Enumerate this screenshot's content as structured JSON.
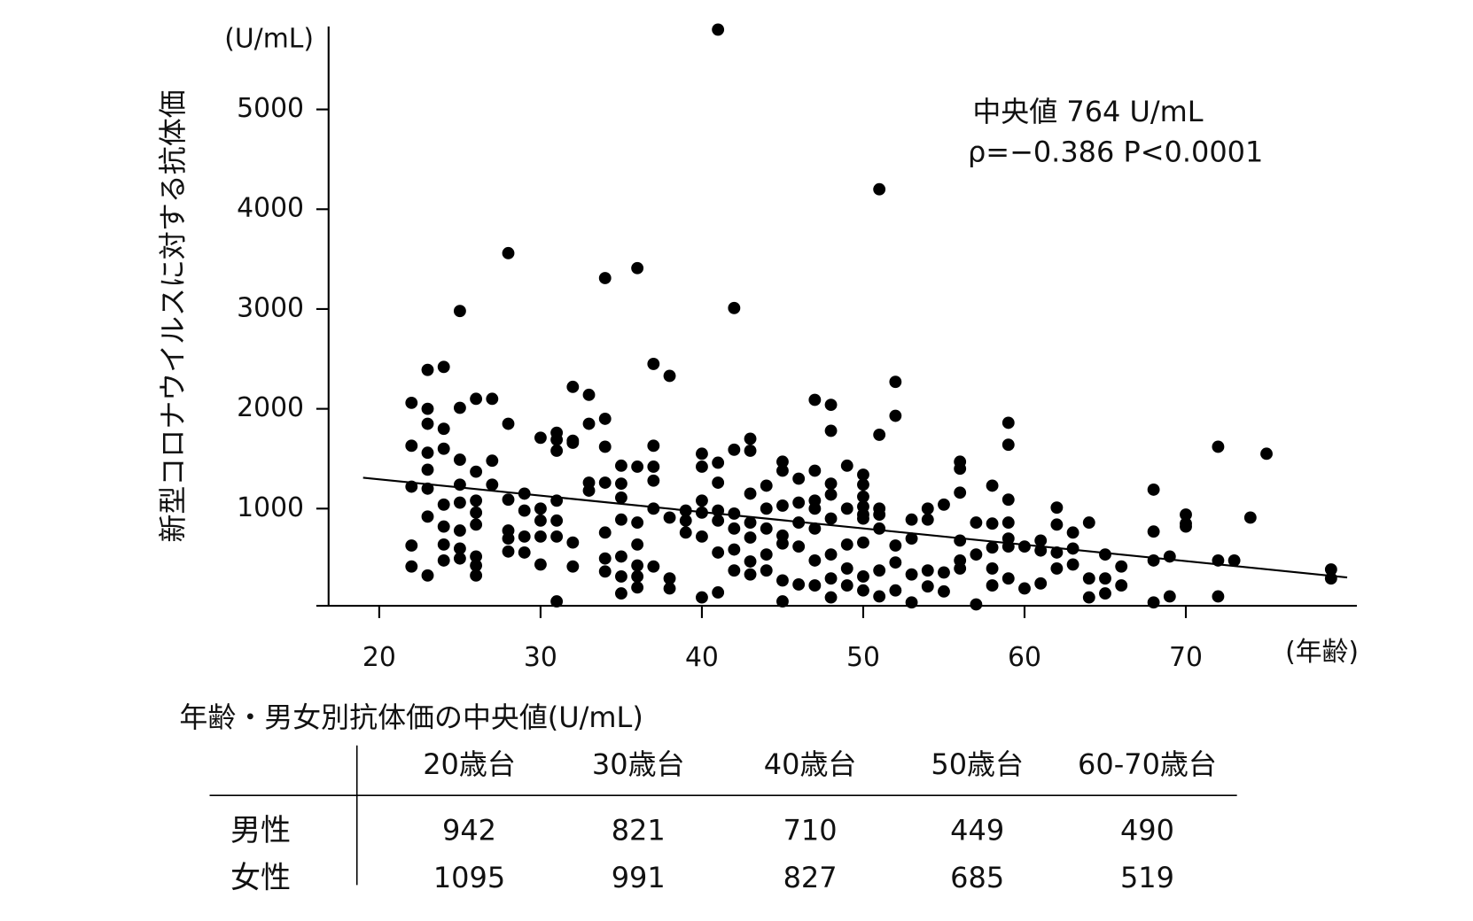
{
  "chart_data": {
    "type": "scatter",
    "ylabel": "新型コロナウイルスに対する抗体価",
    "yunit": "(U/mL)",
    "xunit": "(年齢)",
    "annotations": [
      "中央値 764 U/mL",
      "ρ=−0.386 P<0.0001"
    ],
    "color": "#000000",
    "xlim": [
      16.1,
      80.6
    ],
    "xticks": [
      20,
      30,
      40,
      50,
      60,
      70
    ],
    "ylim": [
      0,
      5850
    ],
    "yticks": [
      1000,
      2000,
      3000,
      4000,
      5000
    ],
    "trend": {
      "x": [
        19,
        80
      ],
      "values": [
        1310,
        310
      ]
    },
    "x": [
      79,
      79,
      75,
      74,
      73,
      72,
      72,
      72,
      70,
      70,
      70,
      69,
      69,
      68,
      68,
      68,
      68,
      66,
      66,
      65,
      65,
      65,
      64,
      64,
      64,
      63,
      63,
      63,
      62,
      62,
      62,
      62,
      61,
      61,
      61,
      60,
      60,
      59,
      59,
      59,
      59,
      59,
      59,
      59,
      58,
      58,
      58,
      58,
      58,
      57,
      57,
      57,
      56,
      56,
      56,
      56,
      56,
      56,
      55,
      55,
      55,
      54,
      54,
      54,
      54,
      53,
      53,
      53,
      53,
      52,
      52,
      52,
      52,
      52,
      51,
      51,
      51,
      51,
      51,
      51,
      51,
      50,
      50,
      50,
      50,
      50,
      50,
      50,
      50,
      50,
      49,
      49,
      49,
      49,
      49,
      48,
      48,
      48,
      48,
      48,
      48,
      48,
      48,
      47,
      47,
      47,
      47,
      47,
      47,
      47,
      46,
      46,
      46,
      46,
      46,
      45,
      45,
      45,
      45,
      45,
      45,
      45,
      44,
      44,
      44,
      44,
      44,
      43,
      43,
      43,
      43,
      43,
      43,
      43,
      42,
      42,
      42,
      42,
      42,
      42,
      41,
      41,
      41,
      41,
      41,
      41,
      41,
      40,
      40,
      40,
      40,
      40,
      40,
      39,
      39,
      39,
      38,
      38,
      38,
      38,
      37,
      37,
      37,
      37,
      37,
      37,
      36,
      36,
      36,
      36,
      36,
      36,
      36,
      35,
      35,
      35,
      35,
      35,
      35,
      35,
      34,
      34,
      34,
      34,
      34,
      34,
      34,
      33,
      33,
      33,
      33,
      32,
      32,
      32,
      32,
      32,
      31,
      31,
      31,
      31,
      31,
      31,
      31,
      30,
      30,
      30,
      30,
      30,
      29,
      29,
      29,
      29,
      28,
      28,
      28,
      28,
      28,
      28,
      27,
      27,
      27,
      26,
      26,
      26,
      26,
      26,
      26,
      26,
      26,
      25,
      25,
      25,
      25,
      25,
      25,
      25,
      25,
      24,
      24,
      24,
      24,
      24,
      24,
      24,
      23,
      23,
      23,
      23,
      23,
      23,
      23,
      23,
      22,
      22,
      22,
      22,
      22
    ],
    "values": [
      390,
      300,
      1550,
      910,
      480,
      1620,
      480,
      120,
      940,
      850,
      820,
      520,
      120,
      1190,
      770,
      480,
      60,
      420,
      230,
      540,
      300,
      150,
      860,
      300,
      110,
      760,
      600,
      440,
      1010,
      840,
      560,
      400,
      680,
      580,
      250,
      620,
      200,
      1860,
      1640,
      1090,
      860,
      700,
      620,
      300,
      1230,
      850,
      610,
      400,
      230,
      860,
      540,
      40,
      1470,
      1400,
      1160,
      680,
      480,
      400,
      1040,
      360,
      170,
      1000,
      890,
      380,
      220,
      890,
      700,
      340,
      60,
      2270,
      1930,
      630,
      460,
      180,
      4200,
      1740,
      1000,
      940,
      800,
      380,
      120,
      1340,
      1240,
      1120,
      1020,
      940,
      900,
      660,
      320,
      180,
      1430,
      1000,
      640,
      400,
      230,
      2040,
      1780,
      1250,
      1140,
      900,
      540,
      300,
      110,
      2090,
      1380,
      1080,
      1000,
      800,
      480,
      230,
      1300,
      1060,
      860,
      620,
      240,
      1470,
      1380,
      1030,
      730,
      650,
      280,
      70,
      1230,
      1000,
      800,
      540,
      380,
      1700,
      1580,
      1150,
      860,
      710,
      470,
      340,
      3010,
      1590,
      950,
      800,
      590,
      380,
      5800,
      1460,
      1260,
      980,
      880,
      560,
      160,
      1550,
      1420,
      1080,
      960,
      720,
      110,
      980,
      880,
      760,
      2330,
      910,
      300,
      200,
      2450,
      1630,
      1420,
      1280,
      1000,
      420,
      3410,
      1420,
      860,
      640,
      430,
      320,
      210,
      1430,
      1250,
      1110,
      890,
      520,
      320,
      150,
      3310,
      1900,
      1620,
      1260,
      760,
      500,
      370,
      2140,
      1850,
      1260,
      1180,
      2220,
      1680,
      1660,
      660,
      420,
      1760,
      1690,
      1580,
      1080,
      880,
      720,
      70,
      1710,
      1000,
      880,
      720,
      440,
      1150,
      980,
      720,
      560,
      3560,
      1850,
      1090,
      780,
      700,
      570,
      2100,
      1480,
      1240,
      2100,
      1370,
      1080,
      960,
      840,
      520,
      430,
      330,
      2980,
      2010,
      1490,
      1240,
      1060,
      780,
      600,
      500,
      2420,
      1800,
      1600,
      1040,
      820,
      640,
      480,
      2390,
      2000,
      1850,
      1560,
      1390,
      1200,
      920,
      330,
      2060,
      1630,
      1220,
      630,
      420
    ]
  },
  "table": {
    "title": "年齢・男女別抗体価の中央値(U/mL)",
    "columns": [
      "20歳台",
      "30歳台",
      "40歳台",
      "50歳台",
      "60-70歳台"
    ],
    "rows": [
      {
        "label": "男性",
        "values": [
          942,
          821,
          710,
          449,
          490
        ]
      },
      {
        "label": "女性",
        "values": [
          1095,
          991,
          827,
          685,
          519
        ]
      }
    ]
  }
}
